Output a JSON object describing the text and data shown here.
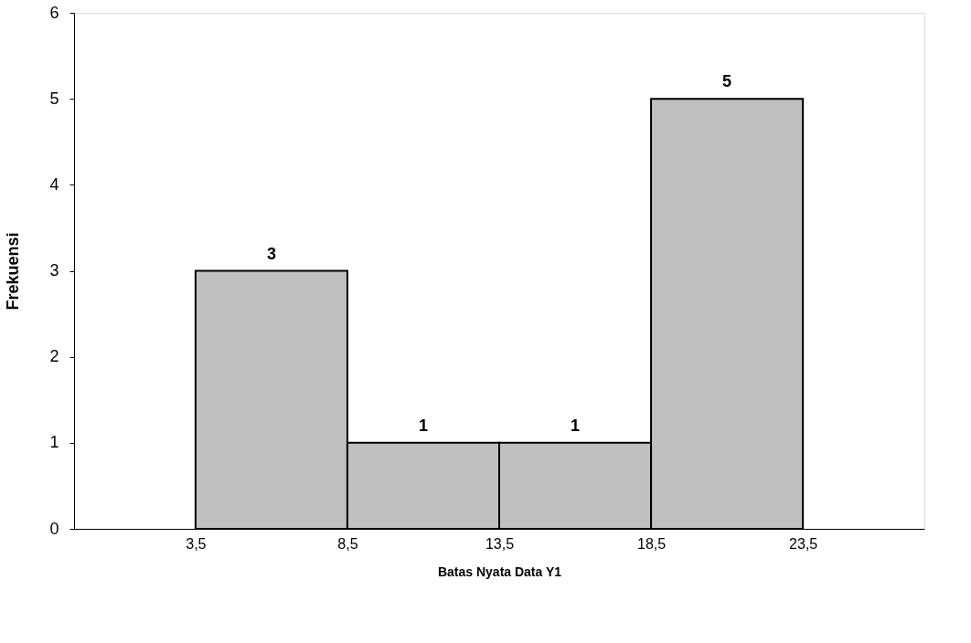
{
  "chart_data": {
    "type": "histogram",
    "xlabel": "Batas Nyata Data Y1",
    "ylabel": "Frekuensi",
    "bins": [
      3.5,
      8.5,
      13.5,
      18.5,
      23.5
    ],
    "values": [
      3,
      1,
      1,
      5
    ],
    "color": "#c0c0c0",
    "xlim": [
      -0.5,
      27.5
    ],
    "xticks": [
      {
        "value": 3.5,
        "label": "3,5"
      },
      {
        "value": 8.5,
        "label": "8,5"
      },
      {
        "value": 13.5,
        "label": "13,5"
      },
      {
        "value": 18.5,
        "label": "18,5"
      },
      {
        "value": 23.5,
        "label": "23,5"
      }
    ],
    "ylim": [
      0,
      6
    ],
    "yticks": [
      0,
      1,
      2,
      3,
      4,
      5,
      6
    ],
    "grid": false,
    "data_labels": true
  }
}
